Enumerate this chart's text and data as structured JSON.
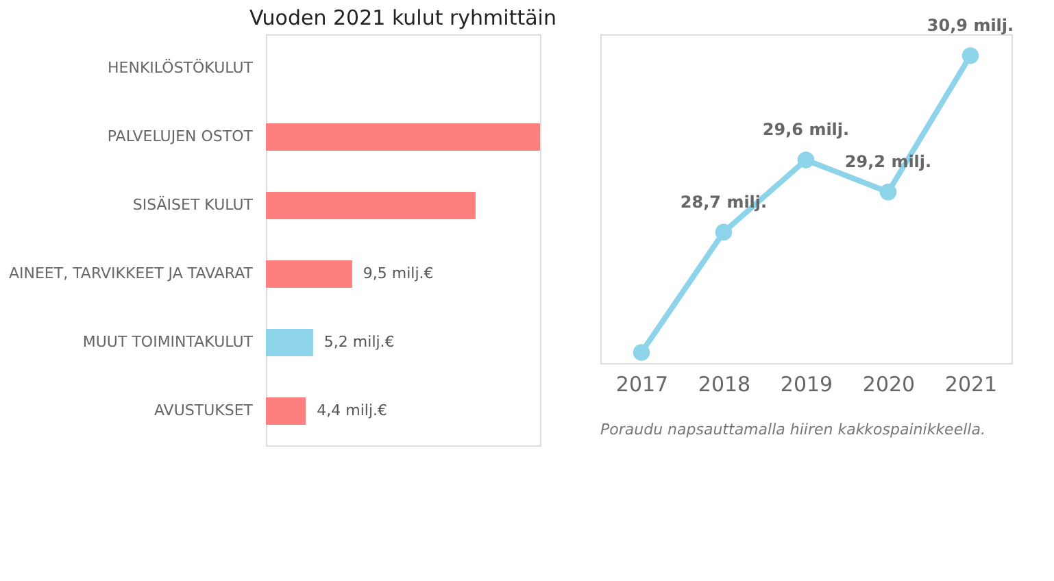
{
  "chart_data": [
    {
      "type": "bar",
      "orientation": "horizontal",
      "title": "Vuoden 2021 kulut ryhmittäin",
      "categories": [
        "HENKILÖSTÖKULUT",
        "PALVELUJEN OSTOT",
        "SISÄISET KULUT",
        "AINEET, TARVIKKEET JA TAVARAT",
        "MUUT TOIMINTAKULUT",
        "AVUSTUKSET"
      ],
      "values": [
        null,
        30.2,
        23.1,
        9.5,
        5.2,
        4.4
      ],
      "colors": [
        "#fd807e",
        "#fd807e",
        "#fd807e",
        "#fd807e",
        "#8dd3ea",
        "#fd807e"
      ],
      "value_labels": [
        null,
        null,
        null,
        "9,5 milj.€",
        "5,2 milj.€",
        "4,4 milj.€"
      ]
    },
    {
      "type": "line",
      "categories": [
        "2017",
        "2018",
        "2019",
        "2020",
        "2021"
      ],
      "series": [
        {
          "color": "#8dd3ea",
          "values": [
            27.2,
            28.7,
            29.6,
            29.2,
            30.9
          ],
          "value_labels": [
            null,
            "28,7 milj.",
            "29,6 milj.",
            "29,2 milj.",
            "30,9 milj."
          ]
        }
      ],
      "marker": "circle",
      "annotations": [
        "Poraudu napsauttamalla hiiren kakkospainikkeella."
      ]
    }
  ]
}
